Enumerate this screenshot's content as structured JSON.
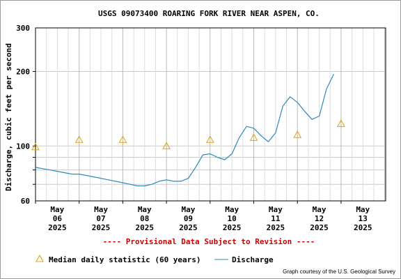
{
  "chart_data": {
    "type": "line",
    "title": "USGS 09073400 ROARING FORK RIVER NEAR ASPEN, CO.",
    "ylabel": "Discharge, cubic feet per second",
    "y_scale": "log",
    "ylim": [
      60,
      300
    ],
    "y_ticks": [
      "300",
      "200",
      "100",
      "60"
    ],
    "x_ticks": [
      {
        "month": "May",
        "day": "06",
        "year": "2025"
      },
      {
        "month": "May",
        "day": "07",
        "year": "2025"
      },
      {
        "month": "May",
        "day": "08",
        "year": "2025"
      },
      {
        "month": "May",
        "day": "09",
        "year": "2025"
      },
      {
        "month": "May",
        "day": "10",
        "year": "2025"
      },
      {
        "month": "May",
        "day": "11",
        "year": "2025"
      },
      {
        "month": "May",
        "day": "12",
        "year": "2025"
      },
      {
        "month": "May",
        "day": "13",
        "year": "2025"
      }
    ],
    "provisional_note": "---- Provisional Data Subject to Revision ----",
    "credit": "Graph courtesy of the U.S. Geological Survey",
    "colors": {
      "discharge": "#2a8ab8",
      "median": "#e0a010",
      "note": "#cc0000",
      "grid": "#c8c8c8"
    },
    "series": [
      {
        "name": "Discharge",
        "x": [
          "2025-05-06 00:00",
          "2025-05-06 04:00",
          "2025-05-06 08:00",
          "2025-05-06 12:00",
          "2025-05-06 16:00",
          "2025-05-06 20:00",
          "2025-05-07 00:00",
          "2025-05-07 04:00",
          "2025-05-07 08:00",
          "2025-05-07 12:00",
          "2025-05-07 16:00",
          "2025-05-07 20:00",
          "2025-05-08 00:00",
          "2025-05-08 04:00",
          "2025-05-08 08:00",
          "2025-05-08 12:00",
          "2025-05-08 16:00",
          "2025-05-08 20:00",
          "2025-05-09 00:00",
          "2025-05-09 04:00",
          "2025-05-09 08:00",
          "2025-05-09 12:00",
          "2025-05-09 16:00",
          "2025-05-09 20:00",
          "2025-05-10 00:00",
          "2025-05-10 04:00",
          "2025-05-10 08:00",
          "2025-05-10 12:00",
          "2025-05-10 16:00",
          "2025-05-10 20:00",
          "2025-05-11 00:00",
          "2025-05-11 04:00",
          "2025-05-11 08:00",
          "2025-05-11 12:00",
          "2025-05-11 16:00",
          "2025-05-11 20:00",
          "2025-05-12 00:00",
          "2025-05-12 04:00",
          "2025-05-12 08:00",
          "2025-05-12 12:00",
          "2025-05-12 16:00",
          "2025-05-12 20:00",
          "2025-05-13 00:00"
        ],
        "values": [
          82,
          81,
          80,
          79,
          78,
          77,
          77,
          76,
          75,
          74,
          73,
          72,
          71,
          70,
          69,
          69,
          70,
          72,
          73,
          72,
          72,
          74,
          82,
          92,
          93,
          90,
          88,
          93,
          108,
          120,
          118,
          110,
          104,
          113,
          145,
          158,
          150,
          138,
          128,
          132,
          170,
          195,
          null
        ]
      },
      {
        "name": "Median daily statistic (60 years)",
        "x": [
          "2025-05-06 00:00",
          "2025-05-07 00:00",
          "2025-05-08 00:00",
          "2025-05-09 00:00",
          "2025-05-10 00:00",
          "2025-05-11 00:00",
          "2025-05-12 00:00",
          "2025-05-13 00:00"
        ],
        "values": [
          99,
          106,
          106,
          100,
          106,
          108,
          111,
          123
        ]
      }
    ]
  }
}
